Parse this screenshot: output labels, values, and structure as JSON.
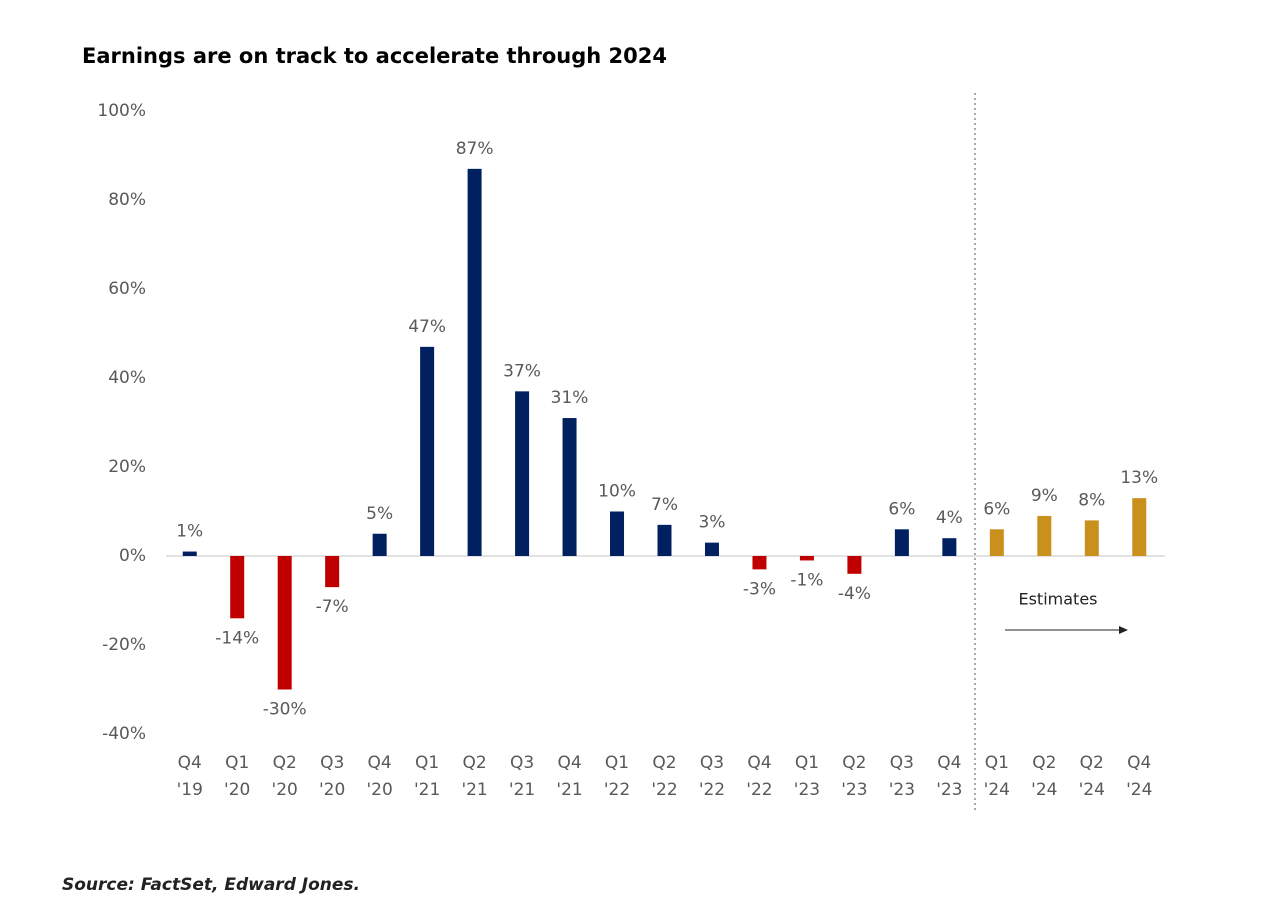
{
  "chart_data": {
    "type": "bar",
    "title": "Earnings are on track to accelerate through 2024",
    "source": "Source: FactSet, Edward Jones.",
    "annotation": "Estimates",
    "categories": [
      [
        "Q4",
        "'19"
      ],
      [
        "Q1",
        "'20"
      ],
      [
        "Q2",
        "'20"
      ],
      [
        "Q3",
        "'20"
      ],
      [
        "Q4",
        "'20"
      ],
      [
        "Q1",
        "'21"
      ],
      [
        "Q2",
        "'21"
      ],
      [
        "Q3",
        "'21"
      ],
      [
        "Q4",
        "'21"
      ],
      [
        "Q1",
        "'22"
      ],
      [
        "Q2",
        "'22"
      ],
      [
        "Q3",
        "'22"
      ],
      [
        "Q4",
        "'22"
      ],
      [
        "Q1",
        "'23"
      ],
      [
        "Q2",
        "'23"
      ],
      [
        "Q3",
        "'23"
      ],
      [
        "Q4",
        "'23"
      ],
      [
        "Q1",
        "'24"
      ],
      [
        "Q2",
        "'24"
      ],
      [
        "Q2",
        "'24"
      ],
      [
        "Q4",
        "'24"
      ]
    ],
    "values": [
      1,
      -14,
      -30,
      -7,
      5,
      47,
      87,
      37,
      31,
      10,
      7,
      3,
      -3,
      -1,
      -4,
      6,
      4,
      6,
      9,
      8,
      13
    ],
    "value_labels": [
      "1%",
      "-14%",
      "-30%",
      "-7%",
      "5%",
      "47%",
      "87%",
      "37%",
      "31%",
      "10%",
      "7%",
      "3%",
      "-3%",
      "-1%",
      "-4%",
      "6%",
      "4%",
      "6%",
      "9%",
      "8%",
      "13%"
    ],
    "colors": [
      "#002060",
      "#c00000",
      "#c00000",
      "#c00000",
      "#002060",
      "#002060",
      "#002060",
      "#002060",
      "#002060",
      "#002060",
      "#002060",
      "#002060",
      "#c00000",
      "#c00000",
      "#c00000",
      "#002060",
      "#002060",
      "#c9901e",
      "#c9901e",
      "#c9901e",
      "#c9901e"
    ],
    "ylim": [
      -40,
      100
    ],
    "yticks": [
      {
        "value": -40,
        "label": "-40%"
      },
      {
        "value": -20,
        "label": "-20%"
      },
      {
        "value": 0,
        "label": "0%"
      },
      {
        "value": 20,
        "label": "20%"
      },
      {
        "value": 40,
        "label": "40%"
      },
      {
        "value": 60,
        "label": "60%"
      },
      {
        "value": 80,
        "label": "80%"
      },
      {
        "value": 100,
        "label": "100%"
      }
    ],
    "grid": false
  }
}
